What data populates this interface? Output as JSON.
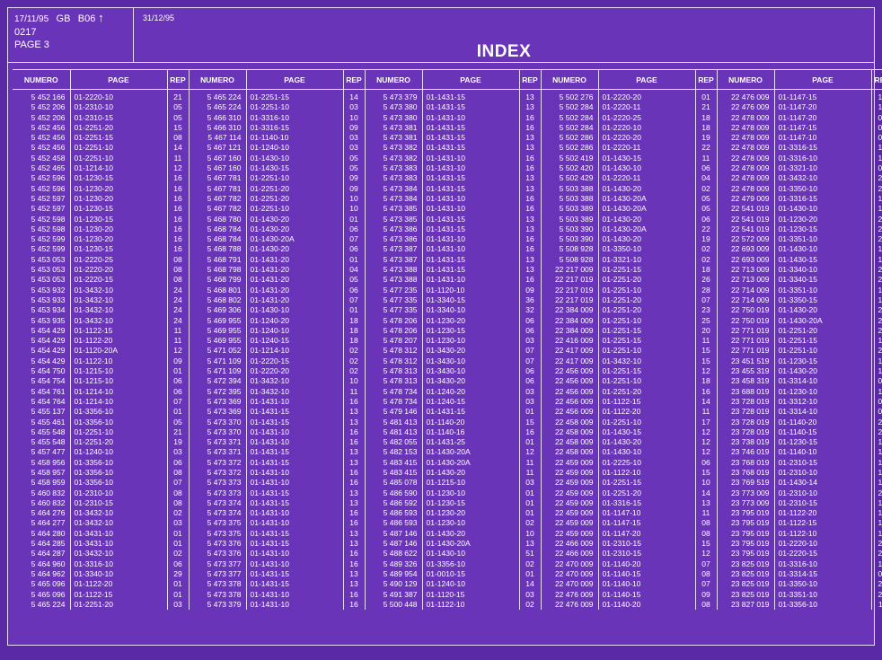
{
  "header": {
    "date": "17/11/95",
    "code1": "GB",
    "code2": "B06",
    "arrow": "↑",
    "ref": "0217",
    "page": "PAGE 3",
    "date2": "31/12/95",
    "title": "INDEX"
  },
  "columns": [
    "NUMERO",
    "PAGE",
    "REP",
    "NUMERO",
    "PAGE",
    "REP",
    "NUMERO",
    "PAGE",
    "REP",
    "NUMERO",
    "PAGE",
    "REP",
    "NUMERO",
    "PAGE",
    "REP"
  ],
  "rows": [
    [
      "5 452 166",
      "01-2220-10",
      "21",
      "5 465 224",
      "01-2251-15",
      "14",
      "5 473 379",
      "01-1431-15",
      "13",
      "5 502 276",
      "01-2220-20",
      "01",
      "22 476 009",
      "01-1147-15",
      "10"
    ],
    [
      "5 452 206",
      "01-2310-10",
      "05",
      "5 465 224",
      "01-2251-10",
      "03",
      "5 473 380",
      "01-1431-15",
      "13",
      "5 502 284",
      "01-2220-11",
      "21",
      "22 476 009",
      "01-1147-20",
      "10"
    ],
    [
      "5 452 206",
      "01-2310-15",
      "05",
      "5 466 310",
      "01-3316-10",
      "10",
      "5 473 380",
      "01-1431-10",
      "16",
      "5 502 284",
      "01-2220-25",
      "18",
      "22 478 009",
      "01-1147-20",
      "09"
    ],
    [
      "5 452 456",
      "01-2251-20",
      "15",
      "5 466 310",
      "01-3316-15",
      "09",
      "5 473 381",
      "01-1431-15",
      "16",
      "5 502 284",
      "01-2220-10",
      "18",
      "22 478 009",
      "01-1147-15",
      "09"
    ],
    [
      "5 452 456",
      "01-2251-15",
      "08",
      "5 467 114",
      "01-1140-10",
      "03",
      "5 473 381",
      "01-1431-15",
      "13",
      "5 502 286",
      "01-2220-20",
      "19",
      "22 478 009",
      "01-1147-10",
      "09"
    ],
    [
      "5 452 456",
      "01-2251-10",
      "14",
      "5 467 121",
      "01-1240-10",
      "03",
      "5 473 382",
      "01-1431-15",
      "13",
      "5 502 286",
      "01-2220-11",
      "22",
      "22 478 009",
      "01-3316-15",
      "14"
    ],
    [
      "5 452 458",
      "01-2251-10",
      "11",
      "5 467 160",
      "01-1430-10",
      "05",
      "5 473 382",
      "01-1431-10",
      "16",
      "5 502 419",
      "01-1430-15",
      "11",
      "22 478 009",
      "01-3316-10",
      "14"
    ],
    [
      "5 452 465",
      "01-1214-10",
      "12",
      "5 467 160",
      "01-1430-15",
      "05",
      "5 473 383",
      "01-1431-10",
      "16",
      "5 502 420",
      "01-1430-10",
      "06",
      "22 478 009",
      "01-3321-10",
      "04"
    ],
    [
      "5 452 596",
      "01-1230-15",
      "16",
      "5 467 781",
      "01-2251-10",
      "09",
      "5 473 383",
      "01-1431-15",
      "13",
      "5 502 429",
      "01-2220-11",
      "04",
      "22 478 009",
      "01-3432-10",
      "27"
    ],
    [
      "5 452 596",
      "01-1230-20",
      "16",
      "5 467 781",
      "01-2251-20",
      "09",
      "5 473 384",
      "01-1431-15",
      "13",
      "5 503 388",
      "01-1430-20",
      "02",
      "22 478 009",
      "01-3350-10",
      "22"
    ],
    [
      "5 452 597",
      "01-1230-20",
      "16",
      "5 467 782",
      "01-2251-20",
      "10",
      "5 473 384",
      "01-1431-10",
      "16",
      "5 503 388",
      "01-1430-20A",
      "05",
      "22 479 009",
      "01-3316-15",
      "15"
    ],
    [
      "5 452 597",
      "01-1230-15",
      "16",
      "5 467 782",
      "01-2251-10",
      "10",
      "5 473 385",
      "01-1431-10",
      "16",
      "5 503 389",
      "01-1430-20A",
      "05",
      "22 541 019",
      "01-1430-10",
      "19"
    ],
    [
      "5 452 598",
      "01-1230-15",
      "16",
      "5 468 780",
      "01-1430-20",
      "01",
      "5 473 385",
      "01-1431-15",
      "13",
      "5 503 389",
      "01-1430-20",
      "06",
      "22 541 019",
      "01-1230-20",
      "23"
    ],
    [
      "5 452 598",
      "01-1230-20",
      "16",
      "5 468 784",
      "01-1430-20",
      "06",
      "5 473 386",
      "01-1431-15",
      "13",
      "5 503 390",
      "01-1430-20A",
      "22",
      "22 541 019",
      "01-1230-15",
      "22"
    ],
    [
      "5 452 599",
      "01-1230-20",
      "16",
      "5 468 784",
      "01-1430-20A",
      "07",
      "5 473 386",
      "01-1431-10",
      "16",
      "5 503 390",
      "01-1430-20",
      "19",
      "22 572 009",
      "01-3351-10",
      "22"
    ],
    [
      "5 452 599",
      "01-1230-15",
      "16",
      "5 468 788",
      "01-1430-20",
      "06",
      "5 473 387",
      "01-1431-10",
      "16",
      "5 508 928",
      "01-3350-10",
      "02",
      "22 693 009",
      "01-1430-10",
      "16"
    ],
    [
      "5 453 053",
      "01-2220-25",
      "08",
      "5 468 791",
      "01-1431-20",
      "01",
      "5 473 387",
      "01-1431-15",
      "13",
      "5 508 928",
      "01-3321-10",
      "02",
      "22 693 009",
      "01-1430-15",
      "16"
    ],
    [
      "5 453 053",
      "01-2220-20",
      "08",
      "5 468 798",
      "01-1431-20",
      "04",
      "5 473 388",
      "01-1431-15",
      "13",
      "22 217 009",
      "01-2251-15",
      "18",
      "22 713 009",
      "01-3340-10",
      "24"
    ],
    [
      "5 453 053",
      "01-2220-15",
      "08",
      "5 468 799",
      "01-1431-20",
      "05",
      "5 473 388",
      "01-1431-10",
      "16",
      "22 217 019",
      "01-2251-20",
      "26",
      "22 713 009",
      "01-3340-15",
      "27"
    ],
    [
      "5 453 932",
      "01-3432-10",
      "24",
      "5 468 801",
      "01-1431-20",
      "06",
      "5 477 235",
      "01-1120-10",
      "09",
      "22 217 019",
      "01-2251-10",
      "28",
      "22 714 009",
      "01-3351-10",
      "17"
    ],
    [
      "5 453 933",
      "01-3432-10",
      "24",
      "5 468 802",
      "01-1431-20",
      "07",
      "5 477 335",
      "01-3340-15",
      "36",
      "22 217 019",
      "01-2251-20",
      "07",
      "22 714 009",
      "01-3350-15",
      "15"
    ],
    [
      "5 453 934",
      "01-3432-10",
      "24",
      "5 469 306",
      "01-1430-10",
      "01",
      "5 477 335",
      "01-3340-10",
      "32",
      "22 384 009",
      "01-2251-20",
      "23",
      "22 750 019",
      "01-1430-20",
      "21"
    ],
    [
      "5 453 935",
      "01-3432-10",
      "24",
      "5 469 955",
      "01-1240-20",
      "18",
      "5 478 206",
      "01-1230-20",
      "06",
      "22 384 009",
      "01-2251-10",
      "25",
      "22 750 019",
      "01-1430-20A",
      "24"
    ],
    [
      "5 454 429",
      "01-1122-15",
      "11",
      "5 469 955",
      "01-1240-10",
      "18",
      "5 478 206",
      "01-1230-15",
      "06",
      "22 384 009",
      "01-2251-15",
      "20",
      "22 771 019",
      "01-2251-20",
      "22"
    ],
    [
      "5 454 429",
      "01-1122-20",
      "11",
      "5 469 955",
      "01-1240-15",
      "18",
      "5 478 207",
      "01-1230-10",
      "03",
      "22 416 009",
      "01-2251-15",
      "11",
      "22 771 019",
      "01-2251-15",
      "19"
    ],
    [
      "5 454 429",
      "01-1120-20A",
      "12",
      "5 471 052",
      "01-1214-10",
      "02",
      "5 478 312",
      "01-3430-20",
      "07",
      "22 417 009",
      "01-2251-10",
      "15",
      "22 771 019",
      "01-2251-10",
      "24"
    ],
    [
      "5 454 429",
      "01-1122-10",
      "09",
      "5 471 109",
      "01-2220-15",
      "02",
      "5 478 312",
      "01-3430-10",
      "07",
      "22 417 009",
      "01-3432-10",
      "15",
      "23 451 519",
      "01-1230-15",
      "15"
    ],
    [
      "5 454 750",
      "01-1215-10",
      "01",
      "5 471 109",
      "01-2220-20",
      "02",
      "5 478 313",
      "01-3430-10",
      "06",
      "22 456 009",
      "01-2251-15",
      "12",
      "23 455 319",
      "01-1430-20",
      "18"
    ],
    [
      "5 454 754",
      "01-1215-10",
      "06",
      "5 472 394",
      "01-3432-10",
      "10",
      "5 478 313",
      "01-3430-20",
      "06",
      "22 456 009",
      "01-2251-10",
      "18",
      "23 458 319",
      "01-3314-10",
      "09"
    ],
    [
      "5 454 761",
      "01-1214-10",
      "06",
      "5 472 395",
      "01-3432-10",
      "11",
      "5 478 734",
      "01-1240-20",
      "03",
      "22 456 009",
      "01-2251-20",
      "16",
      "23 688 019",
      "01-1230-10",
      "14"
    ],
    [
      "5 454 764",
      "01-1214-10",
      "07",
      "5 473 369",
      "01-1431-10",
      "16",
      "5 478 734",
      "01-1240-15",
      "03",
      "22 456 009",
      "01-1122-15",
      "14",
      "23 728 019",
      "01-3312-10",
      "03"
    ],
    [
      "5 455 137",
      "01-3356-10",
      "01",
      "5 473 369",
      "01-1431-15",
      "13",
      "5 479 146",
      "01-1431-15",
      "01",
      "22 456 009",
      "01-1122-20",
      "11",
      "23 728 019",
      "01-3314-10",
      "06"
    ],
    [
      "5 455 461",
      "01-3356-10",
      "05",
      "5 473 370",
      "01-1431-15",
      "13",
      "5 481 413",
      "01-1140-20",
      "15",
      "22 458 009",
      "01-2251-10",
      "17",
      "23 728 019",
      "01-1140-20",
      "20"
    ],
    [
      "5 455 548",
      "01-2251-10",
      "21",
      "5 473 370",
      "01-1431-10",
      "16",
      "5 481 413",
      "01-1140-16",
      "16",
      "22 458 009",
      "01-1430-15",
      "12",
      "23 728 019",
      "01-1140-15",
      "21"
    ],
    [
      "5 455 548",
      "01-2251-20",
      "19",
      "5 473 371",
      "01-1431-10",
      "16",
      "5 482 055",
      "01-1431-25",
      "01",
      "22 458 009",
      "01-1430-20",
      "12",
      "23 738 019",
      "01-1230-15",
      "15"
    ],
    [
      "5 457 477",
      "01-1240-10",
      "03",
      "5 473 371",
      "01-1431-15",
      "13",
      "5 482 153",
      "01-1430-20A",
      "12",
      "22 458 009",
      "01-1430-10",
      "12",
      "23 746 019",
      "01-1140-10",
      "13"
    ],
    [
      "5 458 956",
      "01-3356-10",
      "06",
      "5 473 372",
      "01-1431-15",
      "13",
      "5 483 415",
      "01-1430-20A",
      "11",
      "22 459 009",
      "01-2225-10",
      "06",
      "23 768 019",
      "01-2310-15",
      "16"
    ],
    [
      "5 458 957",
      "01-3356-10",
      "08",
      "5 473 372",
      "01-1431-10",
      "16",
      "5 483 415",
      "01-1430-20",
      "11",
      "22 459 009",
      "01-1122-10",
      "15",
      "23 768 019",
      "01-2310-10",
      "19"
    ],
    [
      "5 458 959",
      "01-3356-10",
      "07",
      "5 473 373",
      "01-1431-10",
      "16",
      "5 485 078",
      "01-1215-10",
      "03",
      "22 459 009",
      "01-2251-15",
      "10",
      "23 769 519",
      "01-1430-14",
      "14"
    ],
    [
      "5 460 832",
      "01-2310-10",
      "08",
      "5 473 373",
      "01-1431-15",
      "13",
      "5 486 590",
      "01-1230-10",
      "01",
      "22 459 009",
      "01-2251-20",
      "14",
      "23 773 009",
      "01-2310-10",
      "20"
    ],
    [
      "5 460 832",
      "01-2310-15",
      "08",
      "5 473 374",
      "01-1431-15",
      "13",
      "5 486 592",
      "01-1230-15",
      "01",
      "22 459 009",
      "01-3316-15",
      "13",
      "23 773 009",
      "01-2310-15",
      "17"
    ],
    [
      "5 464 276",
      "01-3432-10",
      "02",
      "5 473 374",
      "01-1431-10",
      "16",
      "5 486 593",
      "01-1230-20",
      "01",
      "22 459 009",
      "01-1147-10",
      "11",
      "23 795 019",
      "01-1122-20",
      "14"
    ],
    [
      "5 464 277",
      "01-3432-10",
      "03",
      "5 473 375",
      "01-1431-10",
      "16",
      "5 486 593",
      "01-1230-10",
      "02",
      "22 459 009",
      "01-1147-15",
      "08",
      "23 795 019",
      "01-1122-15",
      "13"
    ],
    [
      "5 464 280",
      "01-3431-10",
      "01",
      "5 473 375",
      "01-1431-15",
      "13",
      "5 487 146",
      "01-1430-20",
      "10",
      "22 459 009",
      "01-1147-20",
      "08",
      "23 795 019",
      "01-1122-10",
      "15"
    ],
    [
      "5 464 285",
      "01-3431-10",
      "01",
      "5 473 376",
      "01-1431-15",
      "13",
      "5 487 146",
      "01-1430-20A",
      "13",
      "22 466 009",
      "01-2310-15",
      "15",
      "23 795 019",
      "01-2220-10",
      "26"
    ],
    [
      "5 464 287",
      "01-3432-10",
      "02",
      "5 473 376",
      "01-1431-10",
      "16",
      "5 488 622",
      "01-1430-10",
      "51",
      "22 466 009",
      "01-2310-15",
      "12",
      "23 795 019",
      "01-2220-15",
      "24"
    ],
    [
      "5 464 960",
      "01-3316-10",
      "06",
      "5 473 377",
      "01-1431-10",
      "16",
      "5 489 326",
      "01-3356-10",
      "02",
      "22 470 009",
      "01-1140-20",
      "07",
      "23 825 019",
      "01-3316-10",
      "13"
    ],
    [
      "5 464 962",
      "01-3340-10",
      "29",
      "5 473 377",
      "01-1431-15",
      "13",
      "5 489 954",
      "01-0010-15",
      "01",
      "22 470 009",
      "01-1140-15",
      "08",
      "23 825 019",
      "01-3314-15",
      "03"
    ],
    [
      "5 465 096",
      "01-1122-20",
      "01",
      "5 473 378",
      "01-1431-15",
      "13",
      "5 490 129",
      "01-1240-10",
      "14",
      "22 470 009",
      "01-1140-10",
      "07",
      "23 825 019",
      "01-3350-10",
      "23"
    ],
    [
      "5 465 096",
      "01-1122-15",
      "01",
      "5 473 378",
      "01-1431-10",
      "16",
      "5 491 387",
      "01-1120-15",
      "03",
      "22 476 009",
      "01-1140-15",
      "09",
      "23 825 019",
      "01-3351-10",
      "20"
    ],
    [
      "5 465 224",
      "01-2251-20",
      "03",
      "5 473 379",
      "01-1431-10",
      "16",
      "5 500 448",
      "01-1122-10",
      "02",
      "22 476 009",
      "01-1140-20",
      "08",
      "23 827 019",
      "01-3356-10",
      "11"
    ]
  ]
}
